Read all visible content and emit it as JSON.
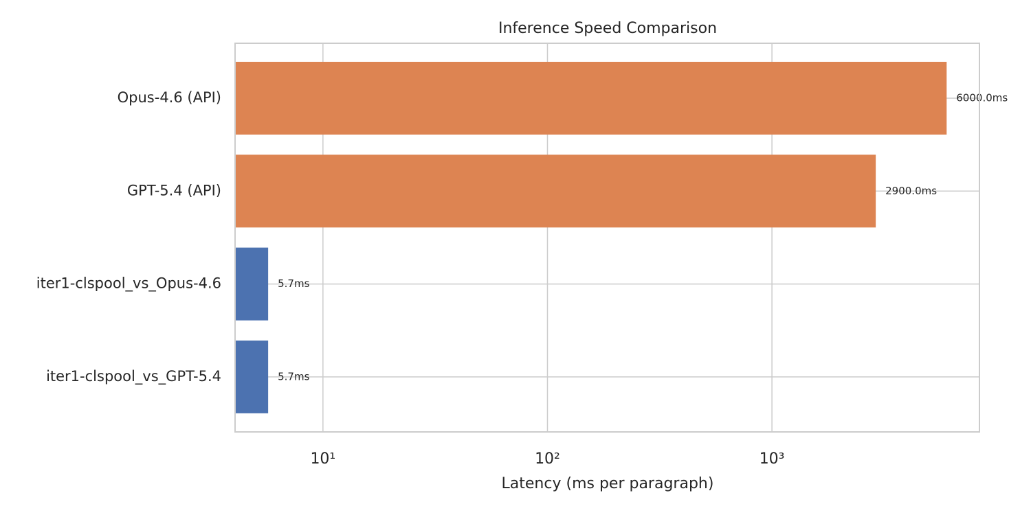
{
  "chart_data": {
    "type": "barh",
    "title": "Inference Speed Comparison",
    "x_label": "Latency (ms per paragraph)",
    "categories": [
      "Opus-4.6 (API)",
      "GPT-5.4 (API)",
      "iter1-clspool_vs_Opus-4.6",
      "iter1-clspool_vs_GPT-5.4"
    ],
    "values": [
      6000,
      2900,
      5.7,
      5.7
    ],
    "value_labels": [
      "6000.0ms",
      "2900.0ms",
      "5.7ms",
      "5.7ms"
    ],
    "colors": [
      "#dd8452",
      "#dd8452",
      "#4c72b0",
      "#4c72b0"
    ],
    "xscale": "log",
    "xlim": [
      4.06,
      8400
    ],
    "xticks": [
      {
        "value": 10,
        "label": "10¹"
      },
      {
        "value": 100,
        "label": "10²"
      },
      {
        "value": 1000,
        "label": "10³"
      }
    ],
    "grid": true
  }
}
